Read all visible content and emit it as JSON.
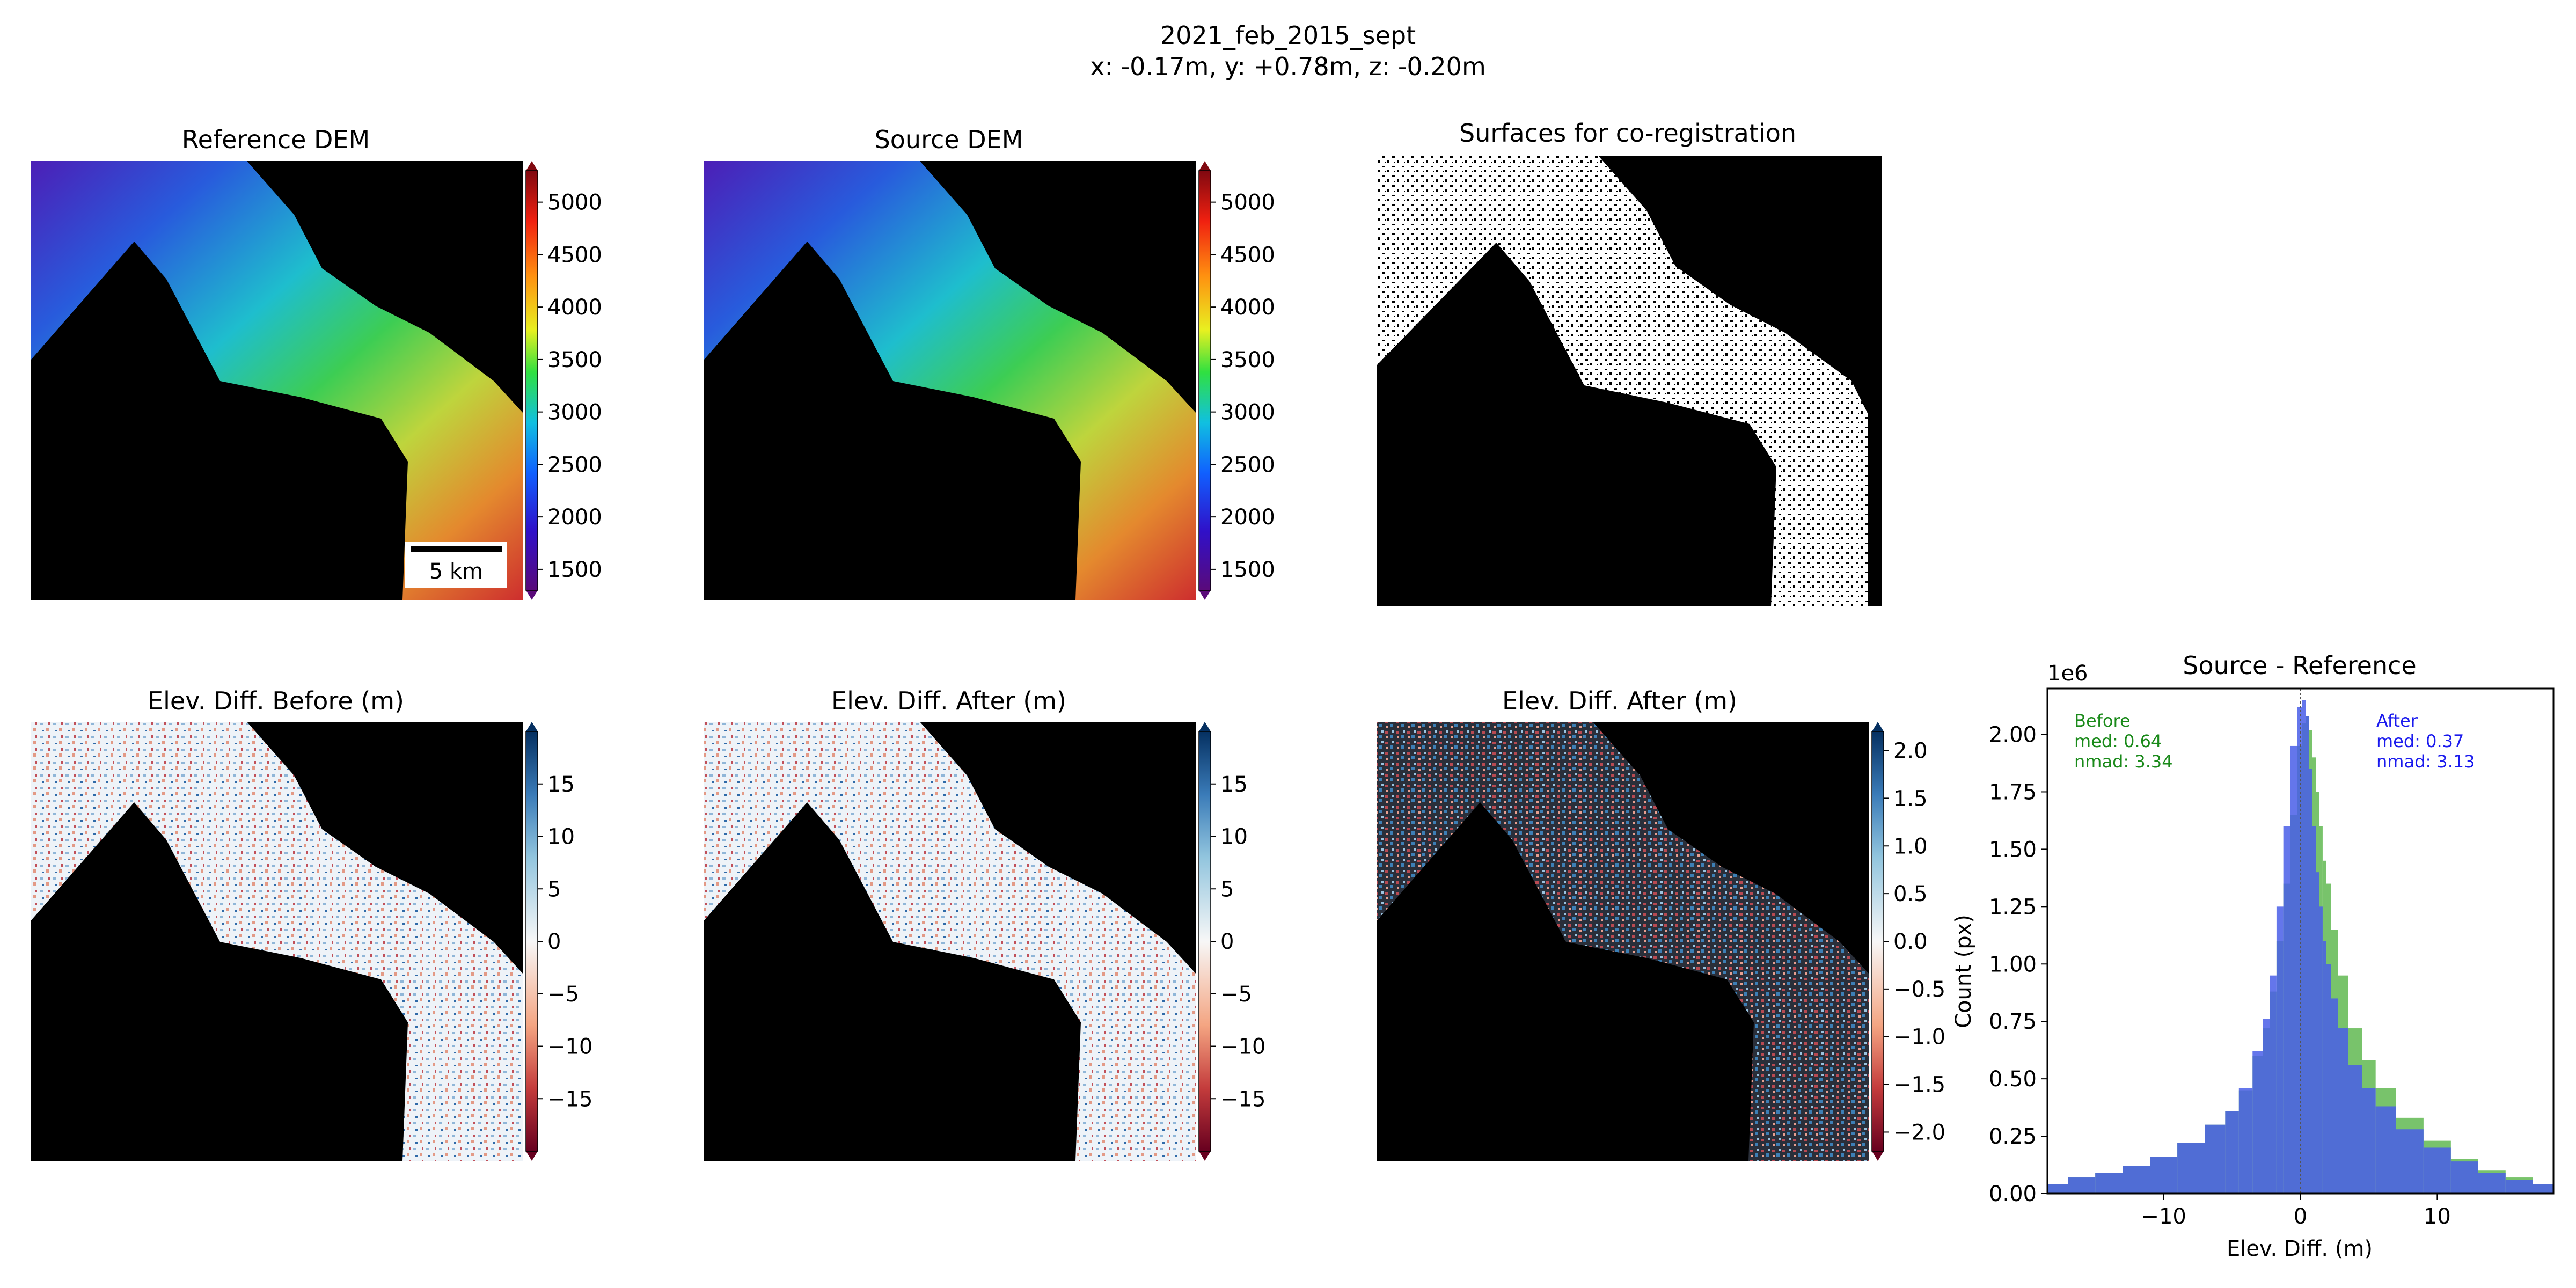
{
  "figure": {
    "title": "2021_feb_2015_sept",
    "subtitle": "x: -0.17m, y: +0.78m, z: -0.20m"
  },
  "panels": {
    "reference_dem": {
      "title": "Reference DEM",
      "scalebar_label": "5 km"
    },
    "source_dem": {
      "title": "Source DEM"
    },
    "surfaces": {
      "title": "Surfaces for co-registration"
    },
    "diff_before": {
      "title": "Elev. Diff. Before (m)"
    },
    "diff_after": {
      "title": "Elev. Diff. After (m)"
    },
    "diff_after_zoom": {
      "title": "Elev. Diff. After (m)"
    }
  },
  "colorbars": {
    "elevation": {
      "ticks": [
        "1500",
        "2000",
        "2500",
        "3000",
        "3500",
        "4000",
        "4500",
        "5000"
      ],
      "min": 1300,
      "max": 5300,
      "colormap": "terrain-rainbow"
    },
    "diff": {
      "ticks": [
        "−15",
        "−10",
        "−5",
        "0",
        "5",
        "10",
        "15"
      ],
      "min": -20,
      "max": 20,
      "colormap": "RdBu"
    },
    "diff_zoom": {
      "ticks": [
        "−2.0",
        "−1.5",
        "−1.0",
        "−0.5",
        "0.0",
        "0.5",
        "1.0",
        "1.5",
        "2.0"
      ],
      "min": -2.2,
      "max": 2.2,
      "colormap": "RdBu"
    }
  },
  "chart_data": {
    "type": "bar",
    "title": "Source - Reference",
    "xlabel": "Elev. Diff. (m)",
    "ylabel": "Count (px)",
    "y_scale_label": "1e6",
    "xlim": [
      -18.5,
      18.5
    ],
    "ylim": [
      0,
      2.2
    ],
    "xticks": [
      "−10",
      "0",
      "10"
    ],
    "yticks": [
      "0.00",
      "0.25",
      "0.50",
      "0.75",
      "1.00",
      "1.25",
      "1.50",
      "1.75",
      "2.00"
    ],
    "grid": false,
    "annotations": {
      "before": [
        "Before",
        "med: 0.64",
        "nmad: 3.34"
      ],
      "after": [
        "After",
        "med: 0.37",
        "nmad: 3.13"
      ]
    },
    "series": [
      {
        "name": "Before",
        "color": "#4caf3a",
        "x": [
          -18,
          -16,
          -14,
          -12,
          -10,
          -8,
          -6,
          -5,
          -4,
          -3,
          -2.5,
          -2,
          -1.5,
          -1,
          -0.5,
          0,
          0.25,
          0.5,
          0.75,
          1,
          1.25,
          1.5,
          1.75,
          2,
          2.5,
          3,
          4,
          5,
          6,
          8,
          10,
          12,
          14,
          16,
          18
        ],
        "y": [
          0.04,
          0.07,
          0.09,
          0.12,
          0.16,
          0.22,
          0.3,
          0.36,
          0.45,
          0.6,
          0.72,
          0.88,
          1.1,
          1.35,
          1.65,
          1.95,
          2.05,
          2.08,
          2.02,
          1.9,
          1.75,
          1.6,
          1.45,
          1.35,
          1.15,
          0.95,
          0.72,
          0.58,
          0.46,
          0.33,
          0.23,
          0.15,
          0.1,
          0.07,
          0.04
        ]
      },
      {
        "name": "After",
        "color": "#4a5fe8",
        "x": [
          -18,
          -16,
          -14,
          -12,
          -10,
          -8,
          -6,
          -5,
          -4,
          -3,
          -2.5,
          -2,
          -1.5,
          -1,
          -0.5,
          0,
          0.25,
          0.5,
          0.75,
          1,
          1.25,
          1.5,
          1.75,
          2,
          2.5,
          3,
          4,
          5,
          6,
          8,
          10,
          12,
          14,
          16,
          18
        ],
        "y": [
          0.04,
          0.07,
          0.09,
          0.12,
          0.16,
          0.22,
          0.3,
          0.36,
          0.46,
          0.62,
          0.76,
          0.95,
          1.25,
          1.6,
          1.95,
          2.12,
          2.15,
          2.08,
          1.85,
          1.6,
          1.4,
          1.25,
          1.1,
          1.0,
          0.85,
          0.72,
          0.56,
          0.46,
          0.38,
          0.28,
          0.2,
          0.14,
          0.09,
          0.06,
          0.04
        ]
      }
    ]
  }
}
